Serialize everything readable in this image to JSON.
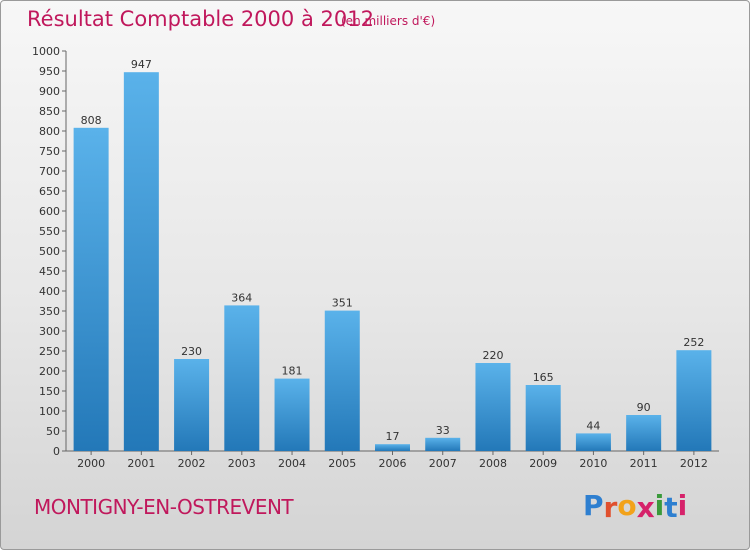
{
  "title": "Résultat Comptable 2000 à 2012",
  "subtitle": "(en milliers d'€)",
  "town": "MONTIGNY-EN-OSTREVENT",
  "brand": "Proxiti",
  "brand_colors": [
    "#2e7fd0",
    "#e0502e",
    "#f2a21a",
    "#d6226a",
    "#3a9a3a",
    "#2e7fd0",
    "#d6226a"
  ],
  "colors": {
    "title": "#c0185c",
    "bar_top": "#5ab2ea",
    "bar_bottom": "#2378b8"
  },
  "chart_data": {
    "type": "bar",
    "categories": [
      "2000",
      "2001",
      "2002",
      "2003",
      "2004",
      "2005",
      "2006",
      "2007",
      "2008",
      "2009",
      "2010",
      "2011",
      "2012"
    ],
    "values": [
      808,
      947,
      230,
      364,
      181,
      351,
      17,
      33,
      220,
      165,
      44,
      90,
      252
    ],
    "ylim": [
      0,
      1000
    ],
    "yticks": [
      0,
      50,
      100,
      150,
      200,
      250,
      300,
      350,
      400,
      450,
      500,
      550,
      600,
      650,
      700,
      750,
      800,
      850,
      900,
      950,
      1000
    ],
    "grid": false,
    "legend": "none"
  }
}
